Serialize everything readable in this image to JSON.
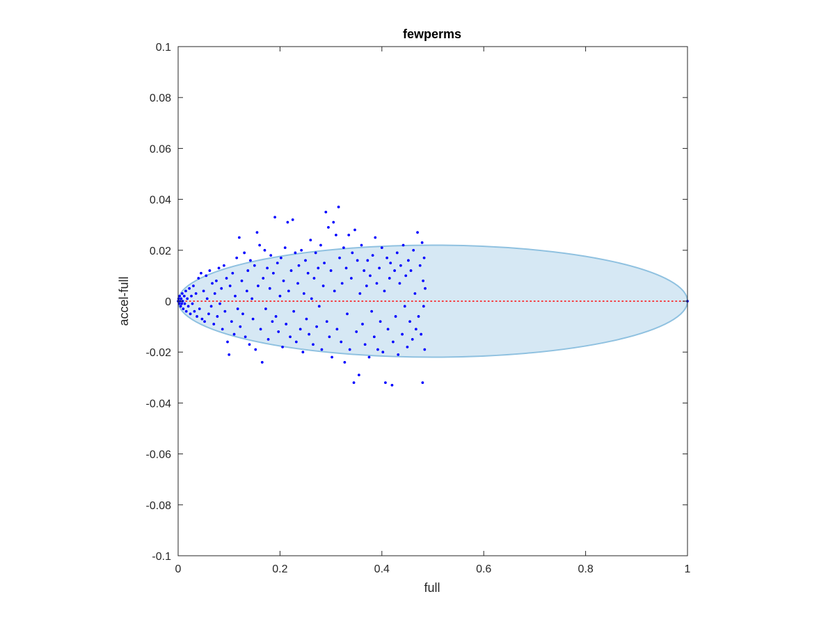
{
  "chart_data": {
    "type": "scatter",
    "title": "fewperms",
    "xlabel": "full",
    "ylabel": "accel-full",
    "xlim": [
      0,
      1
    ],
    "ylim": [
      -0.1,
      0.1
    ],
    "x_ticks": [
      0,
      0.2,
      0.4,
      0.6,
      0.8,
      1
    ],
    "x_tick_labels": [
      "0",
      "0.2",
      "0.4",
      "0.6",
      "0.8",
      "1"
    ],
    "y_ticks": [
      -0.1,
      -0.08,
      -0.06,
      -0.04,
      -0.02,
      0,
      0.02,
      0.04,
      0.06,
      0.08,
      0.1
    ],
    "y_tick_labels": [
      "-0.1",
      "-0.08",
      "-0.06",
      "-0.04",
      "-0.02",
      "0",
      "0.02",
      "0.04",
      "0.06",
      "0.08",
      "0.1"
    ],
    "grid": false,
    "box": true,
    "colors": {
      "points": "#0000ff",
      "ellipse_fill": "#d6e8f4",
      "ellipse_edge": "#8fc1e0",
      "reference_line": "#ff0000",
      "axes": "#262626"
    },
    "ellipse": {
      "center": [
        0.5,
        0
      ],
      "semi_axes": [
        0.5,
        0.022
      ]
    },
    "reference_line": {
      "x": [
        0,
        1
      ],
      "y": [
        0,
        0
      ],
      "style": "dotted"
    },
    "points": [
      [
        0.0,
        0.0
      ],
      [
        0.001,
        0.001
      ],
      [
        0.002,
        -0.001
      ],
      [
        0.003,
        0.002
      ],
      [
        0.004,
        0.0
      ],
      [
        0.005,
        -0.002
      ],
      [
        0.006,
        0.001
      ],
      [
        0.007,
        -0.001
      ],
      [
        0.008,
        0.003
      ],
      [
        0.009,
        0.0
      ],
      [
        0.01,
        -0.003
      ],
      [
        0.012,
        0.002
      ],
      [
        0.013,
        -0.001
      ],
      [
        0.015,
        0.004
      ],
      [
        0.016,
        -0.004
      ],
      [
        0.018,
        0.001
      ],
      [
        0.02,
        -0.002
      ],
      [
        0.022,
        0.005
      ],
      [
        0.024,
        -0.005
      ],
      [
        0.026,
        0.002
      ],
      [
        0.028,
        -0.001
      ],
      [
        0.03,
        0.006
      ],
      [
        0.032,
        -0.004
      ],
      [
        0.035,
        0.003
      ],
      [
        0.037,
        -0.006
      ],
      [
        0.04,
        0.009
      ],
      [
        0.042,
        -0.003
      ],
      [
        0.045,
        0.011
      ],
      [
        0.047,
        -0.007
      ],
      [
        0.05,
        0.004
      ],
      [
        0.052,
        -0.008
      ],
      [
        0.055,
        0.01
      ],
      [
        0.057,
        0.001
      ],
      [
        0.06,
        -0.005
      ],
      [
        0.062,
        0.012
      ],
      [
        0.065,
        -0.002
      ],
      [
        0.067,
        0.007
      ],
      [
        0.07,
        -0.009
      ],
      [
        0.072,
        0.003
      ],
      [
        0.075,
        0.008
      ],
      [
        0.077,
        -0.006
      ],
      [
        0.08,
        0.013
      ],
      [
        0.082,
        -0.001
      ],
      [
        0.085,
        0.005
      ],
      [
        0.087,
        -0.011
      ],
      [
        0.09,
        0.014
      ],
      [
        0.092,
        -0.004
      ],
      [
        0.095,
        0.009
      ],
      [
        0.097,
        -0.016
      ],
      [
        0.1,
        -0.021
      ],
      [
        0.102,
        0.006
      ],
      [
        0.105,
        -0.008
      ],
      [
        0.107,
        0.011
      ],
      [
        0.11,
        -0.013
      ],
      [
        0.112,
        0.002
      ],
      [
        0.115,
        0.017
      ],
      [
        0.117,
        -0.003
      ],
      [
        0.12,
        0.025
      ],
      [
        0.122,
        -0.01
      ],
      [
        0.125,
        0.008
      ],
      [
        0.127,
        -0.005
      ],
      [
        0.13,
        0.019
      ],
      [
        0.132,
        -0.014
      ],
      [
        0.135,
        0.004
      ],
      [
        0.137,
        0.012
      ],
      [
        0.14,
        -0.017
      ],
      [
        0.142,
        0.016
      ],
      [
        0.145,
        0.001
      ],
      [
        0.147,
        -0.007
      ],
      [
        0.15,
        0.014
      ],
      [
        0.152,
        -0.019
      ],
      [
        0.155,
        0.027
      ],
      [
        0.157,
        0.006
      ],
      [
        0.16,
        0.022
      ],
      [
        0.162,
        -0.011
      ],
      [
        0.165,
        -0.024
      ],
      [
        0.167,
        0.009
      ],
      [
        0.17,
        0.02
      ],
      [
        0.172,
        -0.003
      ],
      [
        0.175,
        0.013
      ],
      [
        0.177,
        -0.015
      ],
      [
        0.18,
        0.005
      ],
      [
        0.182,
        0.018
      ],
      [
        0.185,
        -0.008
      ],
      [
        0.187,
        0.011
      ],
      [
        0.19,
        0.033
      ],
      [
        0.192,
        -0.006
      ],
      [
        0.195,
        0.015
      ],
      [
        0.197,
        -0.012
      ],
      [
        0.2,
        0.002
      ],
      [
        0.202,
        0.017
      ],
      [
        0.205,
        -0.018
      ],
      [
        0.207,
        0.008
      ],
      [
        0.21,
        0.021
      ],
      [
        0.212,
        -0.009
      ],
      [
        0.215,
        0.031
      ],
      [
        0.217,
        0.004
      ],
      [
        0.22,
        -0.014
      ],
      [
        0.222,
        0.012
      ],
      [
        0.225,
        0.032
      ],
      [
        0.227,
        -0.004
      ],
      [
        0.23,
        0.019
      ],
      [
        0.232,
        -0.016
      ],
      [
        0.235,
        0.007
      ],
      [
        0.237,
        0.014
      ],
      [
        0.24,
        -0.011
      ],
      [
        0.242,
        0.02
      ],
      [
        0.245,
        -0.02
      ],
      [
        0.247,
        0.003
      ],
      [
        0.25,
        0.016
      ],
      [
        0.252,
        -0.007
      ],
      [
        0.255,
        0.011
      ],
      [
        0.257,
        -0.013
      ],
      [
        0.26,
        0.024
      ],
      [
        0.262,
        0.001
      ],
      [
        0.265,
        -0.017
      ],
      [
        0.267,
        0.009
      ],
      [
        0.27,
        0.019
      ],
      [
        0.272,
        -0.01
      ],
      [
        0.275,
        0.013
      ],
      [
        0.277,
        -0.002
      ],
      [
        0.28,
        0.022
      ],
      [
        0.282,
        -0.019
      ],
      [
        0.285,
        0.006
      ],
      [
        0.287,
        0.015
      ],
      [
        0.29,
        0.035
      ],
      [
        0.292,
        -0.008
      ],
      [
        0.295,
        0.029
      ],
      [
        0.297,
        -0.014
      ],
      [
        0.3,
        0.012
      ],
      [
        0.302,
        -0.022
      ],
      [
        0.305,
        0.031
      ],
      [
        0.307,
        0.004
      ],
      [
        0.31,
        0.026
      ],
      [
        0.312,
        -0.011
      ],
      [
        0.315,
        0.037
      ],
      [
        0.317,
        0.017
      ],
      [
        0.32,
        -0.016
      ],
      [
        0.322,
        0.007
      ],
      [
        0.325,
        0.021
      ],
      [
        0.327,
        -0.024
      ],
      [
        0.33,
        0.013
      ],
      [
        0.332,
        -0.005
      ],
      [
        0.335,
        0.026
      ],
      [
        0.337,
        -0.019
      ],
      [
        0.34,
        0.009
      ],
      [
        0.342,
        0.019
      ],
      [
        0.345,
        -0.032
      ],
      [
        0.347,
        0.028
      ],
      [
        0.35,
        -0.012
      ],
      [
        0.352,
        0.016
      ],
      [
        0.355,
        -0.029
      ],
      [
        0.357,
        0.003
      ],
      [
        0.36,
        0.022
      ],
      [
        0.362,
        -0.009
      ],
      [
        0.365,
        0.012
      ],
      [
        0.367,
        -0.017
      ],
      [
        0.37,
        0.006
      ],
      [
        0.372,
        0.016
      ],
      [
        0.375,
        -0.022
      ],
      [
        0.377,
        0.01
      ],
      [
        0.38,
        -0.004
      ],
      [
        0.382,
        0.018
      ],
      [
        0.385,
        -0.014
      ],
      [
        0.387,
        0.025
      ],
      [
        0.39,
        0.007
      ],
      [
        0.392,
        -0.019
      ],
      [
        0.395,
        0.013
      ],
      [
        0.397,
        -0.008
      ],
      [
        0.4,
        0.021
      ],
      [
        0.402,
        -0.02
      ],
      [
        0.405,
        0.004
      ],
      [
        0.407,
        -0.032
      ],
      [
        0.41,
        0.017
      ],
      [
        0.412,
        -0.011
      ],
      [
        0.415,
        0.009
      ],
      [
        0.417,
        0.015
      ],
      [
        0.42,
        -0.033
      ],
      [
        0.422,
        -0.016
      ],
      [
        0.425,
        0.012
      ],
      [
        0.427,
        -0.006
      ],
      [
        0.43,
        0.019
      ],
      [
        0.432,
        -0.021
      ],
      [
        0.435,
        0.007
      ],
      [
        0.437,
        0.014
      ],
      [
        0.44,
        -0.013
      ],
      [
        0.442,
        0.022
      ],
      [
        0.445,
        -0.002
      ],
      [
        0.447,
        0.01
      ],
      [
        0.45,
        -0.018
      ],
      [
        0.452,
        0.016
      ],
      [
        0.455,
        -0.008
      ],
      [
        0.457,
        0.012
      ],
      [
        0.46,
        -0.015
      ],
      [
        0.462,
        0.02
      ],
      [
        0.465,
        0.003
      ],
      [
        0.467,
        -0.011
      ],
      [
        0.47,
        0.027
      ],
      [
        0.472,
        -0.006
      ],
      [
        0.475,
        0.014
      ],
      [
        0.477,
        -0.013
      ],
      [
        0.479,
        0.023
      ],
      [
        0.48,
        -0.032
      ],
      [
        0.481,
        0.008
      ],
      [
        0.482,
        -0.002
      ],
      [
        0.483,
        0.017
      ],
      [
        0.484,
        -0.019
      ],
      [
        0.485,
        0.005
      ],
      [
        1.0,
        0.0
      ]
    ]
  }
}
